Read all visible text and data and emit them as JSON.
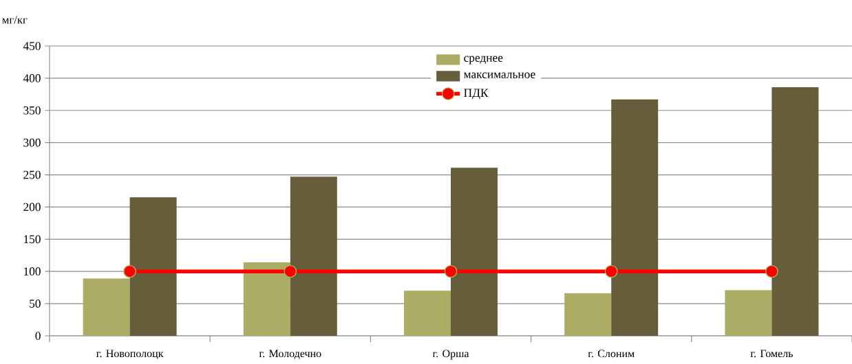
{
  "chart_data": {
    "type": "bar",
    "ylabel": "мг/кг",
    "categories": [
      "г. Новополоцк",
      "г. Молодечно",
      "г. Орша",
      "г. Слоним",
      "г. Гомель"
    ],
    "series": [
      {
        "name": "среднее",
        "color": "#acac64",
        "values": [
          89,
          114,
          70,
          66,
          71
        ]
      },
      {
        "name": "максимальное",
        "color": "#665e3a",
        "values": [
          215,
          247,
          261,
          367,
          386
        ]
      },
      {
        "name": "ПДК",
        "type": "line",
        "color": "#ff0000",
        "marker": "circle",
        "values": [
          100,
          100,
          100,
          100,
          100
        ]
      }
    ],
    "ylim": [
      0,
      450
    ],
    "yticks": [
      0,
      50,
      100,
      150,
      200,
      250,
      300,
      350,
      400,
      450
    ],
    "grid": "y",
    "legend": "top"
  }
}
